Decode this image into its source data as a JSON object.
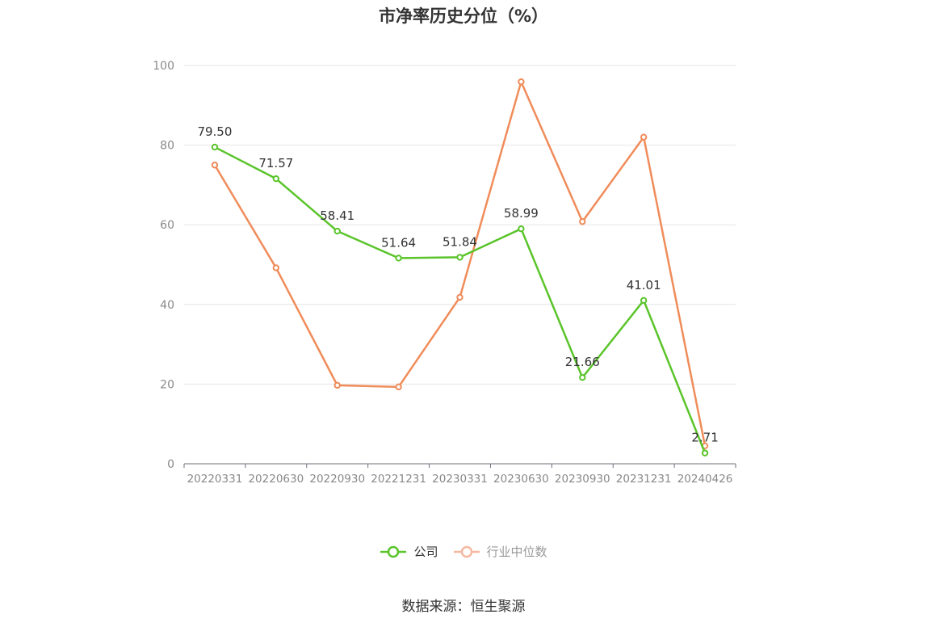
{
  "colors": {
    "company": "#5ac42a",
    "industry": "#f08c5a",
    "industry_legend": "#f5b8a0",
    "axis": "#6e7079",
    "grid": "#e6e6e6",
    "tick_text": "#888888"
  },
  "chart_data": {
    "type": "line",
    "title": "市净率历史分位（%）",
    "categories": [
      "20220331",
      "20220630",
      "20220930",
      "20221231",
      "20230331",
      "20230630",
      "20230930",
      "20231231",
      "20240426"
    ],
    "y_ticks": [
      "0",
      "20",
      "40",
      "60",
      "80",
      "100"
    ],
    "ylim": [
      0,
      100
    ],
    "grid": true,
    "legend_position": "bottom",
    "series": [
      {
        "name": "公司",
        "values": [
          79.5,
          71.57,
          58.41,
          51.64,
          51.84,
          58.99,
          21.66,
          41.01,
          2.71
        ],
        "labels": [
          "79.50",
          "71.57",
          "58.41",
          "51.64",
          "51.84",
          "58.99",
          "21.66",
          "41.01",
          "2.71"
        ]
      },
      {
        "name": "行业中位数",
        "values": [
          75.0,
          49.2,
          19.7,
          19.3,
          41.8,
          95.9,
          60.8,
          82.0,
          4.5
        ]
      }
    ]
  },
  "legend": {
    "company": "公司",
    "industry": "行业中位数"
  },
  "source": "数据来源：恒生聚源"
}
